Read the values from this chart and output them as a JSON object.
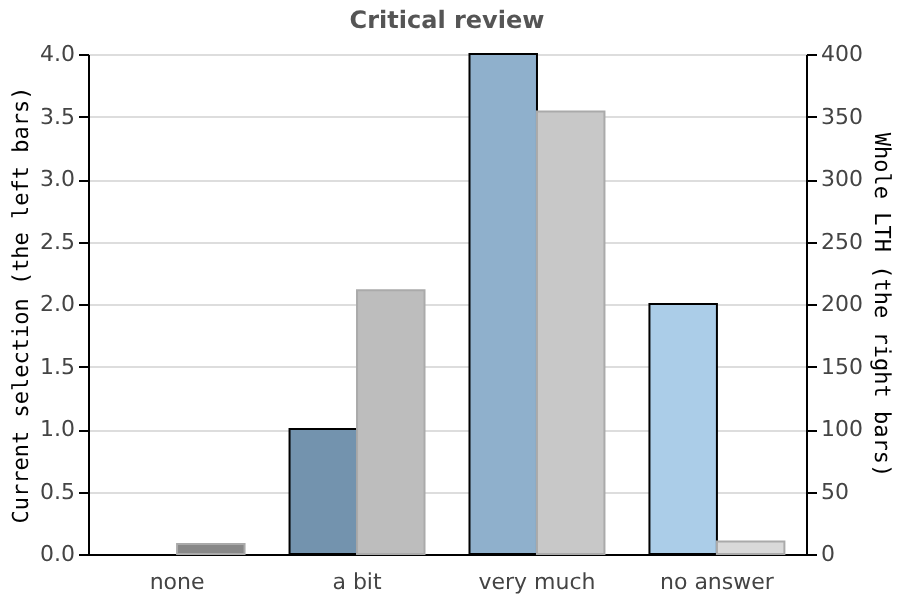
{
  "chart_data": {
    "type": "bar",
    "title": "Critical review",
    "categories": [
      "none",
      "a bit",
      "very much",
      "no answer"
    ],
    "ylabel": "Current selection (the left bars)",
    "y2label": "Whole LTH (the right bars)",
    "ylim": [
      0,
      4
    ],
    "yticks": [
      {
        "value": 0,
        "label": "0.0"
      },
      {
        "value": 0.5,
        "label": "0.5"
      },
      {
        "value": 1,
        "label": "1.0"
      },
      {
        "value": 1.5,
        "label": "1.5"
      },
      {
        "value": 2,
        "label": "2.0"
      },
      {
        "value": 2.5,
        "label": "2.5"
      },
      {
        "value": 3,
        "label": "3.0"
      },
      {
        "value": 3.5,
        "label": "3.5"
      },
      {
        "value": 4,
        "label": "4.0"
      }
    ],
    "y2lim": [
      0,
      400
    ],
    "y2ticks": [
      0,
      50,
      100,
      150,
      200,
      250,
      300,
      350,
      400
    ],
    "grid": "y",
    "series": [
      {
        "values": [
          0,
          1,
          4,
          2
        ],
        "colors": [
          "#5f7f99",
          "#7393ae",
          "#8fb0cc",
          "#abcde8"
        ]
      },
      {
        "axis": "y2",
        "values": [
          8,
          211,
          354,
          10
        ],
        "colors": [
          "#888888",
          "#bdbdbd",
          "#c8c8c8",
          "#d9d9d9"
        ]
      }
    ]
  }
}
